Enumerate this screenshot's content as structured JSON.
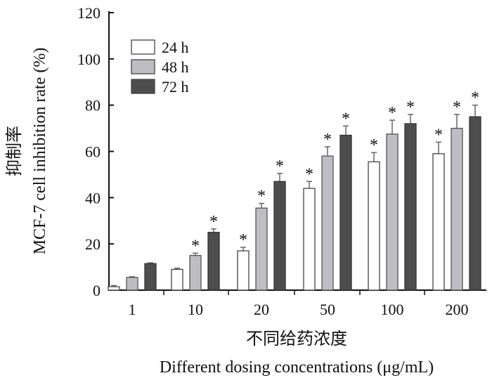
{
  "chart_data": {
    "type": "bar",
    "categories": [
      "1",
      "10",
      "20",
      "50",
      "100",
      "200"
    ],
    "ylabel_cn": "抑制率",
    "ylabel": "MCF-7 cell inhibition rate (%)",
    "xlabel_cn": "不同给药浓度",
    "xlabel": "Different dosing concentrations (μg/mL)",
    "ylim": [
      0,
      120
    ],
    "yticks": [
      "0",
      "20",
      "40",
      "60",
      "80",
      "100",
      "120"
    ],
    "legend_position": "top-left",
    "grid": false,
    "significance_marker": "*",
    "series": [
      {
        "name": "24 h",
        "color": "#ffffff",
        "values": [
          1.5,
          9,
          17,
          44,
          55.5,
          59
        ],
        "errors": [
          0.5,
          0.5,
          1.5,
          3,
          4,
          5
        ],
        "significant": [
          false,
          false,
          true,
          true,
          true,
          true
        ]
      },
      {
        "name": "48 h",
        "color": "#bdbdc2",
        "values": [
          5.5,
          15,
          35.5,
          58,
          67.5,
          70
        ],
        "errors": [
          0.3,
          1,
          2,
          4,
          6,
          6
        ],
        "significant": [
          false,
          true,
          true,
          true,
          true,
          true
        ]
      },
      {
        "name": "72 h",
        "color": "#4d4d4d",
        "values": [
          11.5,
          25,
          47,
          67,
          72,
          75
        ],
        "errors": [
          0.3,
          1.5,
          3.5,
          4,
          4,
          5
        ],
        "significant": [
          false,
          true,
          true,
          true,
          true,
          true
        ]
      }
    ]
  }
}
